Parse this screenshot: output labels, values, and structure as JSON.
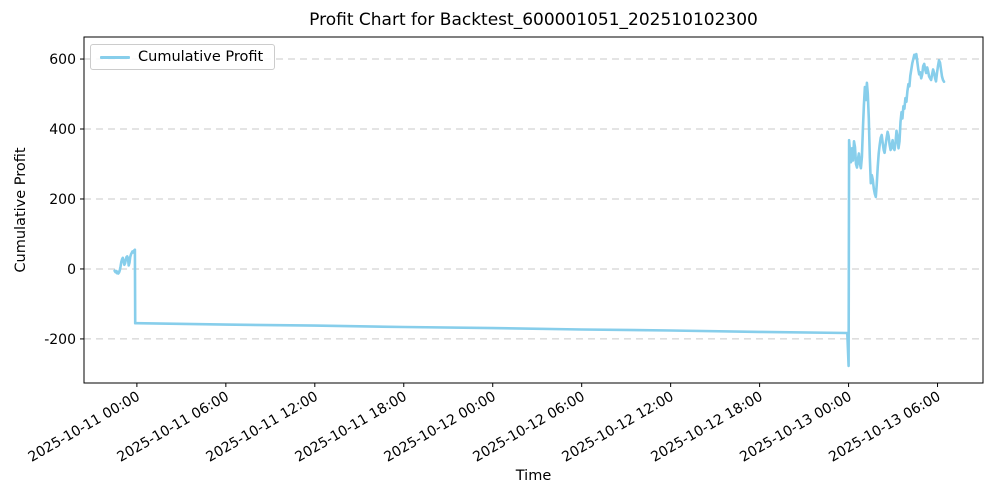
{
  "chart_data": {
    "type": "line",
    "title": "Profit Chart for Backtest_600001051_202510102300",
    "xlabel": "Time",
    "ylabel": "Cumulative Profit",
    "legend_position": "upper left",
    "grid": "horizontal dashed",
    "ylim": [
      -326,
      663
    ],
    "xlim": [
      "2025-10-10 20:26",
      "2025-10-13 09:04"
    ],
    "y_ticks": [
      600,
      400,
      200,
      0,
      -200
    ],
    "y_tick_labels": [
      "600",
      "400",
      "200",
      "0",
      "-200"
    ],
    "x_ticks": [
      "2025-10-11 00:00",
      "2025-10-11 06:00",
      "2025-10-11 12:00",
      "2025-10-11 18:00",
      "2025-10-12 00:00",
      "2025-10-12 06:00",
      "2025-10-12 12:00",
      "2025-10-12 18:00",
      "2025-10-13 00:00",
      "2025-10-13 06:00"
    ],
    "colors": {
      "line": "#87CEEB",
      "grid": "#c9c9c9",
      "spine": "#000000",
      "background": "#ffffff",
      "legend_border": "#cccccc"
    },
    "series": [
      {
        "name": "Cumulative Profit",
        "color": "#87CEEB",
        "points": [
          [
            "2025-10-10 22:30",
            -5
          ],
          [
            "2025-10-10 22:33",
            -9
          ],
          [
            "2025-10-10 22:36",
            -6
          ],
          [
            "2025-10-10 22:39",
            -12
          ],
          [
            "2025-10-10 22:42",
            -8
          ],
          [
            "2025-10-10 22:45",
            -13
          ],
          [
            "2025-10-10 22:48",
            -10
          ],
          [
            "2025-10-10 22:51",
            -4
          ],
          [
            "2025-10-10 22:54",
            8
          ],
          [
            "2025-10-10 22:57",
            20
          ],
          [
            "2025-10-10 23:00",
            28
          ],
          [
            "2025-10-10 23:03",
            32
          ],
          [
            "2025-10-10 23:06",
            24
          ],
          [
            "2025-10-10 23:09",
            12
          ],
          [
            "2025-10-10 23:12",
            16
          ],
          [
            "2025-10-10 23:15",
            26
          ],
          [
            "2025-10-10 23:18",
            34
          ],
          [
            "2025-10-10 23:21",
            36
          ],
          [
            "2025-10-10 23:24",
            30
          ],
          [
            "2025-10-10 23:27",
            10
          ],
          [
            "2025-10-10 23:30",
            18
          ],
          [
            "2025-10-10 23:33",
            34
          ],
          [
            "2025-10-10 23:36",
            42
          ],
          [
            "2025-10-10 23:39",
            46
          ],
          [
            "2025-10-10 23:42",
            50
          ],
          [
            "2025-10-10 23:45",
            47
          ],
          [
            "2025-10-10 23:48",
            52
          ],
          [
            "2025-10-10 23:52",
            55
          ],
          [
            "2025-10-10 23:53",
            -155
          ],
          [
            "2025-10-11 00:00",
            -155
          ],
          [
            "2025-10-11 06:00",
            -159
          ],
          [
            "2025-10-11 12:00",
            -162
          ],
          [
            "2025-10-11 18:00",
            -166
          ],
          [
            "2025-10-12 00:00",
            -169
          ],
          [
            "2025-10-12 06:00",
            -173
          ],
          [
            "2025-10-12 12:00",
            -176
          ],
          [
            "2025-10-12 18:00",
            -180
          ],
          [
            "2025-10-12 23:55",
            -183
          ],
          [
            "2025-10-13 00:00",
            -277
          ],
          [
            "2025-10-13 00:02",
            368
          ],
          [
            "2025-10-13 00:06",
            330
          ],
          [
            "2025-10-13 00:10",
            305
          ],
          [
            "2025-10-13 00:14",
            345
          ],
          [
            "2025-10-13 00:18",
            310
          ],
          [
            "2025-10-13 00:22",
            365
          ],
          [
            "2025-10-13 00:26",
            348
          ],
          [
            "2025-10-13 00:30",
            300
          ],
          [
            "2025-10-13 00:34",
            290
          ],
          [
            "2025-10-13 00:38",
            315
          ],
          [
            "2025-10-13 00:42",
            330
          ],
          [
            "2025-10-13 00:46",
            300
          ],
          [
            "2025-10-13 00:50",
            288
          ],
          [
            "2025-10-13 00:54",
            320
          ],
          [
            "2025-10-13 00:58",
            400
          ],
          [
            "2025-10-13 01:02",
            468
          ],
          [
            "2025-10-13 01:06",
            520
          ],
          [
            "2025-10-13 01:10",
            483
          ],
          [
            "2025-10-13 01:14",
            532
          ],
          [
            "2025-10-13 01:18",
            500
          ],
          [
            "2025-10-13 01:22",
            430
          ],
          [
            "2025-10-13 01:26",
            320
          ],
          [
            "2025-10-13 01:30",
            245
          ],
          [
            "2025-10-13 01:34",
            268
          ],
          [
            "2025-10-13 01:38",
            255
          ],
          [
            "2025-10-13 01:42",
            230
          ],
          [
            "2025-10-13 01:46",
            215
          ],
          [
            "2025-10-13 01:50",
            206
          ],
          [
            "2025-10-13 01:54",
            240
          ],
          [
            "2025-10-13 01:58",
            290
          ],
          [
            "2025-10-13 02:02",
            330
          ],
          [
            "2025-10-13 02:06",
            355
          ],
          [
            "2025-10-13 02:10",
            375
          ],
          [
            "2025-10-13 02:14",
            383
          ],
          [
            "2025-10-13 02:18",
            360
          ],
          [
            "2025-10-13 02:22",
            340
          ],
          [
            "2025-10-13 02:26",
            332
          ],
          [
            "2025-10-13 02:30",
            355
          ],
          [
            "2025-10-13 02:34",
            375
          ],
          [
            "2025-10-13 02:38",
            392
          ],
          [
            "2025-10-13 02:42",
            380
          ],
          [
            "2025-10-13 02:46",
            355
          ],
          [
            "2025-10-13 02:50",
            340
          ],
          [
            "2025-10-13 02:54",
            352
          ],
          [
            "2025-10-13 02:58",
            368
          ],
          [
            "2025-10-13 03:02",
            345
          ],
          [
            "2025-10-13 03:06",
            340
          ],
          [
            "2025-10-13 03:10",
            360
          ],
          [
            "2025-10-13 03:14",
            395
          ],
          [
            "2025-10-13 03:18",
            378
          ],
          [
            "2025-10-13 03:22",
            345
          ],
          [
            "2025-10-13 03:26",
            365
          ],
          [
            "2025-10-13 03:30",
            420
          ],
          [
            "2025-10-13 03:34",
            448
          ],
          [
            "2025-10-13 03:38",
            430
          ],
          [
            "2025-10-13 03:42",
            465
          ],
          [
            "2025-10-13 03:46",
            458
          ],
          [
            "2025-10-13 03:50",
            488
          ],
          [
            "2025-10-13 03:54",
            478
          ],
          [
            "2025-10-13 03:58",
            508
          ],
          [
            "2025-10-13 04:02",
            528
          ],
          [
            "2025-10-13 04:06",
            522
          ],
          [
            "2025-10-13 04:10",
            552
          ],
          [
            "2025-10-13 04:14",
            570
          ],
          [
            "2025-10-13 04:18",
            588
          ],
          [
            "2025-10-13 04:22",
            600
          ],
          [
            "2025-10-13 04:26",
            612
          ],
          [
            "2025-10-13 04:30",
            605
          ],
          [
            "2025-10-13 04:34",
            614
          ],
          [
            "2025-10-13 04:38",
            592
          ],
          [
            "2025-10-13 04:42",
            570
          ],
          [
            "2025-10-13 04:46",
            556
          ],
          [
            "2025-10-13 04:50",
            562
          ],
          [
            "2025-10-13 04:54",
            545
          ],
          [
            "2025-10-13 04:58",
            556
          ],
          [
            "2025-10-13 05:02",
            580
          ],
          [
            "2025-10-13 05:06",
            586
          ],
          [
            "2025-10-13 05:10",
            570
          ],
          [
            "2025-10-13 05:14",
            560
          ],
          [
            "2025-10-13 05:18",
            576
          ],
          [
            "2025-10-13 05:22",
            565
          ],
          [
            "2025-10-13 05:26",
            550
          ],
          [
            "2025-10-13 05:30",
            545
          ],
          [
            "2025-10-13 05:34",
            540
          ],
          [
            "2025-10-13 05:38",
            556
          ],
          [
            "2025-10-13 05:42",
            570
          ],
          [
            "2025-10-13 05:46",
            560
          ],
          [
            "2025-10-13 05:50",
            545
          ],
          [
            "2025-10-13 05:54",
            536
          ],
          [
            "2025-10-13 05:58",
            560
          ],
          [
            "2025-10-13 06:02",
            580
          ],
          [
            "2025-10-13 06:06",
            596
          ],
          [
            "2025-10-13 06:10",
            590
          ],
          [
            "2025-10-13 06:14",
            570
          ],
          [
            "2025-10-13 06:18",
            550
          ],
          [
            "2025-10-13 06:22",
            540
          ],
          [
            "2025-10-13 06:26",
            535
          ]
        ]
      }
    ]
  }
}
